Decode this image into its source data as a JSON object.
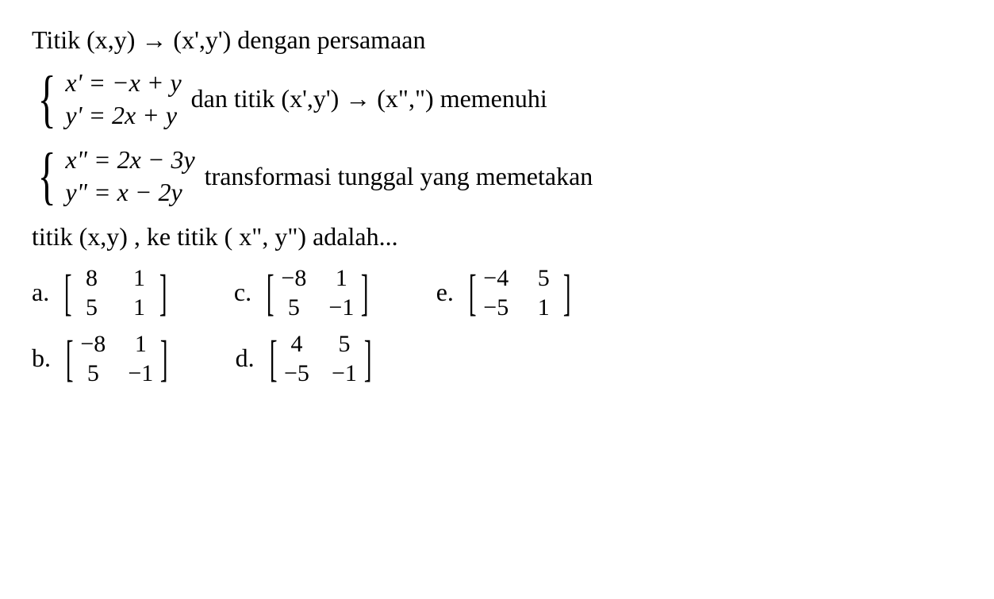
{
  "colors": {
    "background": "#ffffff",
    "text": "#000000"
  },
  "typography": {
    "font_family": "Times New Roman",
    "base_fontsize": 32
  },
  "line1": "Titik (x,y) → (x',y') dengan persamaan",
  "system1": {
    "eq1": "x' = −x + y",
    "eq2": "y' = 2x + y",
    "after": "dan titik (x',y') → (x\",\") memenuhi"
  },
  "system2": {
    "eq1": "x\" = 2x − 3y",
    "eq2": "y\" = x − 2y",
    "after": "transformasi tunggal yang memetakan"
  },
  "line4": "titik (x,y) , ke titik ( x\", y\") adalah...",
  "options": {
    "a": {
      "label": "a.",
      "matrix": [
        [
          "8",
          "1"
        ],
        [
          "5",
          "1"
        ]
      ]
    },
    "b": {
      "label": "b.",
      "matrix": [
        [
          "−8",
          "1"
        ],
        [
          "5",
          "−1"
        ]
      ]
    },
    "c": {
      "label": "c.",
      "matrix": [
        [
          "−8",
          "1"
        ],
        [
          "5",
          "−1"
        ]
      ]
    },
    "d": {
      "label": "d.",
      "matrix": [
        [
          "4",
          "5"
        ],
        [
          "−5",
          "−1"
        ]
      ]
    },
    "e": {
      "label": "e.",
      "matrix": [
        [
          "−4",
          "5"
        ],
        [
          "−5",
          "1"
        ]
      ]
    }
  }
}
